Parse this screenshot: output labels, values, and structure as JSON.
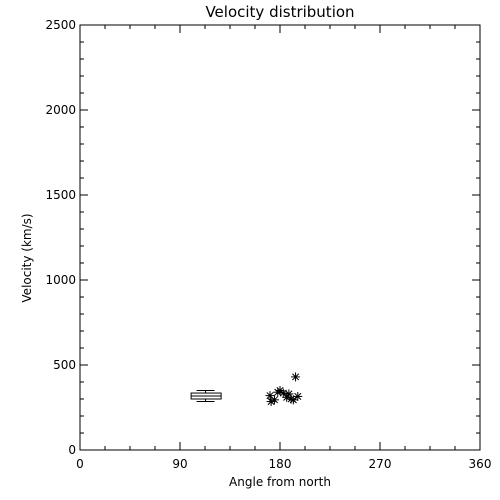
{
  "chart_data": {
    "type": "scatter",
    "title": "Velocity distribution",
    "xlabel": "Angle from north",
    "ylabel": "Velocity (km/s)",
    "xlim": [
      0,
      360
    ],
    "ylim": [
      0,
      2500
    ],
    "xticks": [
      "0",
      "90",
      "180",
      "270",
      "360"
    ],
    "yticks": [
      "0",
      "500",
      "1000",
      "1500",
      "2000",
      "2500"
    ],
    "grid": false,
    "marker": "asterisk",
    "points": [
      {
        "x": 171,
        "y": 320
      },
      {
        "x": 172,
        "y": 285
      },
      {
        "x": 175,
        "y": 295
      },
      {
        "x": 178,
        "y": 340
      },
      {
        "x": 180,
        "y": 350
      },
      {
        "x": 183,
        "y": 335
      },
      {
        "x": 186,
        "y": 310
      },
      {
        "x": 188,
        "y": 330
      },
      {
        "x": 190,
        "y": 300
      },
      {
        "x": 192,
        "y": 295
      },
      {
        "x": 194,
        "y": 430
      },
      {
        "x": 196,
        "y": 315
      }
    ],
    "boxplot": {
      "x_center": 113,
      "x_range": [
        100,
        127
      ],
      "whisker_low": 285,
      "q1": 300,
      "median": 318,
      "q3": 335,
      "whisker_high": 350
    }
  }
}
